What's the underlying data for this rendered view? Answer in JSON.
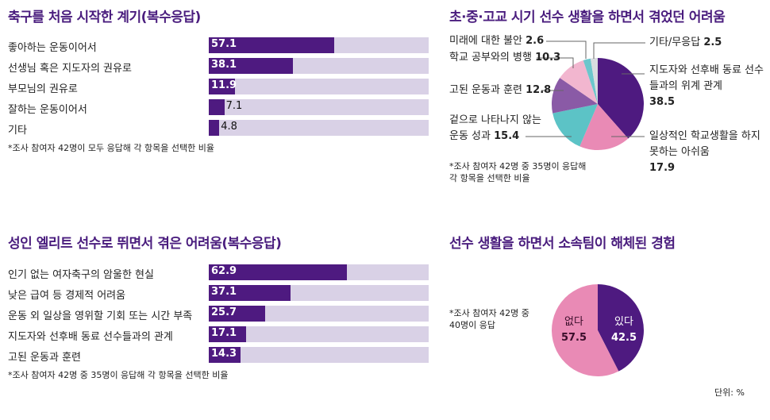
{
  "unit_note": "단위: %",
  "chart_data": [
    {
      "type": "bar",
      "title": "축구를 처음 시작한 계기(복수응답)",
      "categories": [
        "좋아하는 운동이어서",
        "선생님 혹은 지도자의 권유로",
        "부모님의 권유로",
        "잘하는 운동이어서",
        "기타"
      ],
      "values": [
        57.1,
        38.1,
        11.9,
        7.1,
        4.8
      ],
      "xlim": [
        0,
        100
      ],
      "note": "*조사 참여자 42명이 모두 응답해 각 항목을 선택한 비율"
    },
    {
      "type": "pie",
      "title": "초·중·고교 시기 선수 생활을 하면서 겪었던 어려움",
      "slices": [
        {
          "label": "지도자와 선후배 동료 선수들과의 위계 관계",
          "value": 38.5,
          "color": "#4e1a80"
        },
        {
          "label": "일상적인 학교생활을 하지 못하는 아쉬움",
          "value": 17.9,
          "color": "#e98ab5"
        },
        {
          "label": "겉으로 나타나지 않는 운동 성과",
          "value": 15.4,
          "color": "#5cc3c6"
        },
        {
          "label": "고된 운동과 훈련",
          "value": 12.8,
          "color": "#8a5aa6"
        },
        {
          "label": "학교 공부와의 병행",
          "value": 10.3,
          "color": "#f2b6cf"
        },
        {
          "label": "미래에 대한 불안",
          "value": 2.6,
          "color": "#6cc6cc"
        },
        {
          "label": "기타/무응답",
          "value": 2.5,
          "color": "#d8dcdf"
        }
      ],
      "note": [
        "*조사 참여자 42명 중 35명이 응답해",
        "각 항목을 선택한 비율"
      ]
    },
    {
      "type": "bar",
      "title": "성인 엘리트 선수로 뛰면서 겪은 어려움(복수응답)",
      "categories": [
        "인기 없는 여자축구의 암울한 현실",
        "낮은 급여 등 경제적 어려움",
        "운동 외 일상을 영위할 기회 또는 시간 부족",
        "지도자와 선후배 동료 선수들과의 관계",
        "고된 운동과 훈련"
      ],
      "values": [
        62.9,
        37.1,
        25.7,
        17.1,
        14.3
      ],
      "xlim": [
        0,
        100
      ],
      "note": "*조사 참여자 42명 중 35명이 응답해 각 항목을 선택한 비율"
    },
    {
      "type": "pie",
      "title": "선수 생활을 하면서 소속팀이 해체된 경험",
      "slices": [
        {
          "label": "있다",
          "value": 42.5,
          "color": "#4e1a80"
        },
        {
          "label": "없다",
          "value": 57.5,
          "color": "#e98ab5"
        }
      ],
      "note": [
        "*조사 참여자 42명 중",
        "40명이 응답"
      ]
    }
  ]
}
